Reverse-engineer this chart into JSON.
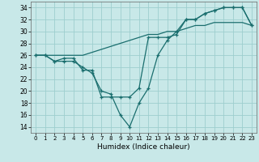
{
  "xlabel": "Humidex (Indice chaleur)",
  "bg_color": "#c8e8e8",
  "grid_color": "#9ecece",
  "line_color": "#1a6e6e",
  "xlim": [
    -0.5,
    23.5
  ],
  "ylim": [
    13,
    35
  ],
  "xticks": [
    0,
    1,
    2,
    3,
    4,
    5,
    6,
    7,
    8,
    9,
    10,
    11,
    12,
    13,
    14,
    15,
    16,
    17,
    18,
    19,
    20,
    21,
    22,
    23
  ],
  "yticks": [
    14,
    16,
    18,
    20,
    22,
    24,
    26,
    28,
    30,
    32,
    34
  ],
  "line1_x": [
    0,
    1,
    2,
    3,
    4,
    5,
    6,
    7,
    8,
    9,
    10,
    11,
    12,
    13,
    14,
    15,
    16,
    17,
    18,
    19,
    20,
    21,
    22,
    23
  ],
  "line1_y": [
    26,
    26,
    25,
    25,
    25,
    24,
    23,
    20,
    19.5,
    16,
    14,
    18,
    20.5,
    26,
    28.5,
    30,
    32,
    32,
    33,
    33.5,
    34,
    34,
    34,
    31
  ],
  "line2_x": [
    0,
    1,
    2,
    3,
    4,
    5,
    6,
    7,
    8,
    9,
    10,
    11,
    12,
    13,
    14,
    15,
    16,
    17,
    18,
    19,
    20,
    21,
    22,
    23
  ],
  "line2_y": [
    26,
    26,
    25,
    25.5,
    25.5,
    23.5,
    23.5,
    19,
    19,
    19,
    19,
    20.5,
    29,
    29,
    29,
    29.5,
    32,
    32,
    33,
    33.5,
    34,
    34,
    34,
    31
  ],
  "line3_x": [
    0,
    1,
    2,
    3,
    4,
    5,
    6,
    7,
    8,
    9,
    10,
    11,
    12,
    13,
    14,
    15,
    16,
    17,
    18,
    19,
    20,
    21,
    22,
    23
  ],
  "line3_y": [
    26,
    26,
    26,
    26,
    26,
    26,
    26.5,
    27,
    27.5,
    28,
    28.5,
    29,
    29.5,
    29.5,
    30,
    30,
    30.5,
    31,
    31,
    31.5,
    31.5,
    31.5,
    31.5,
    31
  ]
}
